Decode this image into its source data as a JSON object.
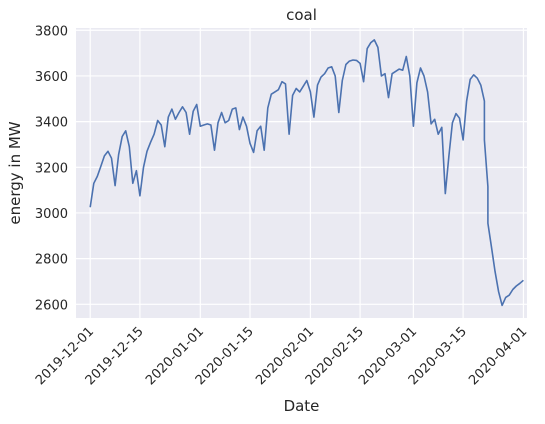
{
  "chart_data": {
    "type": "line",
    "title": "coal",
    "xlabel": "Date",
    "ylabel": "energy in MW",
    "x_range": [
      "2019-11-27",
      "2020-04-02"
    ],
    "ylim": [
      2540,
      3810
    ],
    "x_ticks": [
      "2019-12-01",
      "2019-12-15",
      "2020-01-01",
      "2020-01-15",
      "2020-02-01",
      "2020-02-15",
      "2020-03-01",
      "2020-03-15",
      "2020-04-01"
    ],
    "y_ticks": [
      2600,
      2800,
      3000,
      3200,
      3400,
      3600,
      3800
    ],
    "y_tick_labels": [
      "2600",
      "2800",
      "3000",
      "3200",
      "3400",
      "3600",
      "3800"
    ],
    "grid": true,
    "background_color": "#eaeaf2",
    "series": [
      {
        "color": "#4c72b0",
        "points": [
          [
            "2019-12-01",
            3025
          ],
          [
            "2019-12-02",
            3130
          ],
          [
            "2019-12-03",
            3160
          ],
          [
            "2019-12-04",
            3205
          ],
          [
            "2019-12-05",
            3250
          ],
          [
            "2019-12-06",
            3270
          ],
          [
            "2019-12-07",
            3240
          ],
          [
            "2019-12-08",
            3120
          ],
          [
            "2019-12-09",
            3255
          ],
          [
            "2019-12-10",
            3335
          ],
          [
            "2019-12-11",
            3360
          ],
          [
            "2019-12-12",
            3290
          ],
          [
            "2019-12-13",
            3130
          ],
          [
            "2019-12-14",
            3185
          ],
          [
            "2019-12-15",
            3075
          ],
          [
            "2019-12-16",
            3200
          ],
          [
            "2019-12-17",
            3270
          ],
          [
            "2019-12-18",
            3310
          ],
          [
            "2019-12-19",
            3345
          ],
          [
            "2019-12-20",
            3405
          ],
          [
            "2019-12-21",
            3385
          ],
          [
            "2019-12-22",
            3290
          ],
          [
            "2019-12-23",
            3420
          ],
          [
            "2019-12-24",
            3455
          ],
          [
            "2019-12-25",
            3410
          ],
          [
            "2019-12-26",
            3440
          ],
          [
            "2019-12-27",
            3465
          ],
          [
            "2019-12-28",
            3440
          ],
          [
            "2019-12-29",
            3345
          ],
          [
            "2019-12-30",
            3445
          ],
          [
            "2019-12-31",
            3475
          ],
          [
            "2020-01-01",
            3380
          ],
          [
            "2020-01-02",
            3385
          ],
          [
            "2020-01-03",
            3390
          ],
          [
            "2020-01-04",
            3385
          ],
          [
            "2020-01-05",
            3275
          ],
          [
            "2020-01-06",
            3395
          ],
          [
            "2020-01-07",
            3440
          ],
          [
            "2020-01-08",
            3395
          ],
          [
            "2020-01-09",
            3405
          ],
          [
            "2020-01-10",
            3455
          ],
          [
            "2020-01-11",
            3460
          ],
          [
            "2020-01-12",
            3365
          ],
          [
            "2020-01-13",
            3420
          ],
          [
            "2020-01-14",
            3380
          ],
          [
            "2020-01-15",
            3305
          ],
          [
            "2020-01-16",
            3265
          ],
          [
            "2020-01-17",
            3360
          ],
          [
            "2020-01-18",
            3380
          ],
          [
            "2020-01-19",
            3275
          ],
          [
            "2020-01-20",
            3460
          ],
          [
            "2020-01-21",
            3520
          ],
          [
            "2020-01-22",
            3530
          ],
          [
            "2020-01-23",
            3540
          ],
          [
            "2020-01-24",
            3575
          ],
          [
            "2020-01-25",
            3565
          ],
          [
            "2020-01-26",
            3345
          ],
          [
            "2020-01-27",
            3515
          ],
          [
            "2020-01-28",
            3545
          ],
          [
            "2020-01-29",
            3530
          ],
          [
            "2020-01-30",
            3555
          ],
          [
            "2020-01-31",
            3580
          ],
          [
            "2020-02-01",
            3530
          ],
          [
            "2020-02-02",
            3420
          ],
          [
            "2020-02-03",
            3560
          ],
          [
            "2020-02-04",
            3595
          ],
          [
            "2020-02-05",
            3610
          ],
          [
            "2020-02-06",
            3635
          ],
          [
            "2020-02-07",
            3640
          ],
          [
            "2020-02-08",
            3600
          ],
          [
            "2020-02-09",
            3440
          ],
          [
            "2020-02-10",
            3580
          ],
          [
            "2020-02-11",
            3650
          ],
          [
            "2020-02-12",
            3665
          ],
          [
            "2020-02-13",
            3670
          ],
          [
            "2020-02-14",
            3668
          ],
          [
            "2020-02-15",
            3655
          ],
          [
            "2020-02-16",
            3575
          ],
          [
            "2020-02-17",
            3720
          ],
          [
            "2020-02-18",
            3745
          ],
          [
            "2020-02-19",
            3758
          ],
          [
            "2020-02-20",
            3725
          ],
          [
            "2020-02-21",
            3600
          ],
          [
            "2020-02-22",
            3610
          ],
          [
            "2020-02-23",
            3505
          ],
          [
            "2020-02-24",
            3610
          ],
          [
            "2020-02-25",
            3620
          ],
          [
            "2020-02-26",
            3630
          ],
          [
            "2020-02-27",
            3625
          ],
          [
            "2020-02-28",
            3685
          ],
          [
            "2020-02-29",
            3600
          ],
          [
            "2020-03-01",
            3380
          ],
          [
            "2020-03-02",
            3570
          ],
          [
            "2020-03-03",
            3635
          ],
          [
            "2020-03-04",
            3600
          ],
          [
            "2020-03-05",
            3530
          ],
          [
            "2020-03-06",
            3390
          ],
          [
            "2020-03-07",
            3410
          ],
          [
            "2020-03-08",
            3345
          ],
          [
            "2020-03-09",
            3375
          ],
          [
            "2020-03-10",
            3085
          ],
          [
            "2020-03-11",
            3250
          ],
          [
            "2020-03-12",
            3395
          ],
          [
            "2020-03-13",
            3435
          ],
          [
            "2020-03-14",
            3415
          ],
          [
            "2020-03-15",
            3320
          ],
          [
            "2020-03-16",
            3490
          ],
          [
            "2020-03-17",
            3585
          ],
          [
            "2020-03-18",
            3605
          ],
          [
            "2020-03-19",
            3590
          ],
          [
            "2020-03-20",
            3560
          ],
          [
            "2020-03-21",
            3490
          ],
          [
            "2020-03-21",
            3320
          ],
          [
            "2020-03-22",
            3115
          ],
          [
            "2020-03-22",
            2955
          ],
          [
            "2020-03-23",
            2850
          ],
          [
            "2020-03-24",
            2745
          ],
          [
            "2020-03-25",
            2655
          ],
          [
            "2020-03-26",
            2595
          ],
          [
            "2020-03-27",
            2630
          ],
          [
            "2020-03-28",
            2640
          ],
          [
            "2020-03-29",
            2665
          ],
          [
            "2020-03-30",
            2680
          ],
          [
            "2020-03-31",
            2692
          ],
          [
            "2020-04-01",
            2705
          ]
        ]
      }
    ]
  }
}
